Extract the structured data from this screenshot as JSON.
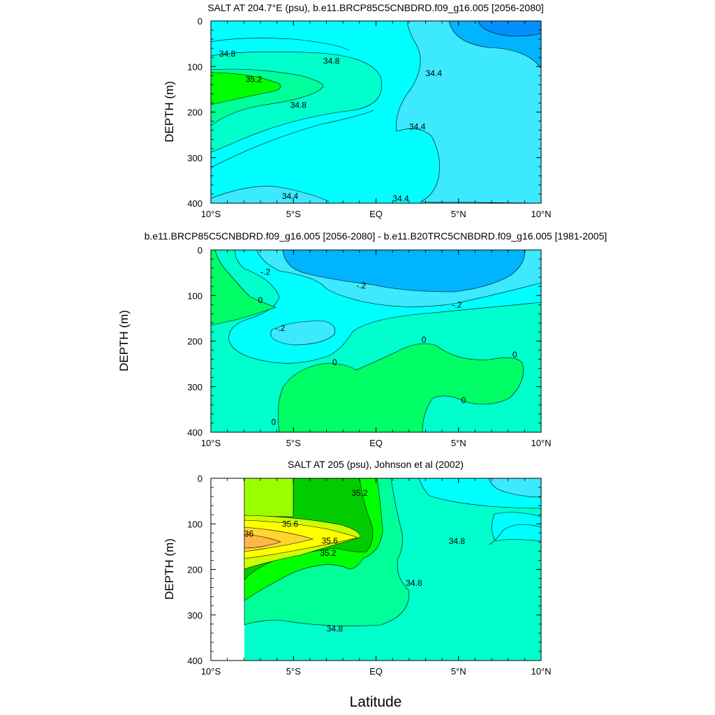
{
  "x_axis_label": "Latitude",
  "chart_data": [
    {
      "type": "heatmap",
      "title": "SALT AT 204.7°E (psu), b.e11.BRCP85C5CNBDRD.f09_g16.005 [2056-2080]",
      "xlabel": "",
      "ylabel": "DEPTH (m)",
      "xlim": [
        -10,
        10
      ],
      "ylim": [
        400,
        0
      ],
      "x_ticks": [
        "10°S",
        "5°S",
        "EQ",
        "5°N",
        "10°N"
      ],
      "y_ticks": [
        "0",
        "100",
        "200",
        "300",
        "400"
      ],
      "contour_levels": [
        34.0,
        34.2,
        34.4,
        34.6,
        34.8,
        35.0,
        35.2
      ],
      "contour_labels": [
        {
          "text": "34.8",
          "x": -9.0,
          "y": 72
        },
        {
          "text": "34.8",
          "x": -2.7,
          "y": 88
        },
        {
          "text": "35.2",
          "x": -7.4,
          "y": 128
        },
        {
          "text": "34.8",
          "x": -4.7,
          "y": 185
        },
        {
          "text": "34.4",
          "x": 3.5,
          "y": 115
        },
        {
          "text": "34.4",
          "x": 2.5,
          "y": 232
        },
        {
          "text": "34.4",
          "x": -5.2,
          "y": 385
        },
        {
          "text": "34.4",
          "x": 1.5,
          "y": 390
        }
      ],
      "regions": [
        {
          "label": "34.2-34.4",
          "color": "#3ce9ff",
          "x": [
            2.0,
            10.0
          ],
          "depth": [
            0,
            400
          ]
        },
        {
          "label": "34.4-34.6",
          "color": "#00ffff",
          "x": [
            -10.0,
            2.0
          ],
          "depth": [
            0,
            400
          ]
        },
        {
          "label": "34.6-34.8",
          "color": "#00ffcc",
          "x": [
            -10.0,
            0.5
          ],
          "depth": [
            40,
            290
          ]
        },
        {
          "label": "34.8-35.0",
          "color": "#00ff99",
          "x": [
            -10.0,
            -3.0
          ],
          "depth": [
            100,
            200
          ]
        },
        {
          "label": "35.0-35.2",
          "color": "#00ff00",
          "x": [
            -10.0,
            -5.0
          ],
          "depth": [
            110,
            185
          ]
        },
        {
          "label": "34.0-34.2",
          "color": "#00b4ff",
          "x": [
            6.0,
            10.0
          ],
          "depth": [
            0,
            60
          ]
        },
        {
          "label": "< 34.0",
          "color": "#0090ff",
          "x": [
            8.0,
            10.0
          ],
          "depth": [
            0,
            35
          ]
        }
      ]
    },
    {
      "type": "heatmap",
      "title": "b.e11.BRCP85C5CNBDRD.f09_g16.005 [2056-2080] - b.e11.B20TRC5CNBDRD.f09_g16.005 [1981-2005]",
      "xlabel": "",
      "ylabel": "DEPTH (m)",
      "xlim": [
        -10,
        10
      ],
      "ylim": [
        400,
        0
      ],
      "x_ticks": [
        "10°S",
        "5°S",
        "EQ",
        "5°N",
        "10°N"
      ],
      "y_ticks": [
        "0",
        "100",
        "200",
        "300",
        "400"
      ],
      "contour_levels": [
        -0.6,
        -0.4,
        -0.2,
        0.0
      ],
      "contour_labels": [
        {
          "text": "-.2",
          "x": -6.7,
          "y": 48
        },
        {
          "text": "-.2",
          "x": -0.9,
          "y": 78
        },
        {
          "text": "-.2",
          "x": 4.9,
          "y": 120
        },
        {
          "text": "0",
          "x": -7.0,
          "y": 110
        },
        {
          "text": "-.2",
          "x": -5.8,
          "y": 172
        },
        {
          "text": "0",
          "x": -2.5,
          "y": 247
        },
        {
          "text": "0",
          "x": 2.9,
          "y": 197
        },
        {
          "text": "0",
          "x": 8.4,
          "y": 230
        },
        {
          "text": "0",
          "x": 5.3,
          "y": 330
        },
        {
          "text": "0",
          "x": -6.2,
          "y": 378
        }
      ],
      "regions": [
        {
          "label": "-0.2-0",
          "color": "#00ffcc",
          "x": [
            -10.0,
            10.0
          ],
          "depth": [
            0,
            400
          ]
        },
        {
          "label": "-0.4 to -0.2",
          "color": "#00ffff",
          "x": [
            -8.0,
            10.0
          ],
          "depth": [
            0,
            240
          ]
        },
        {
          "label": "-0.6 to -0.4",
          "color": "#3ce9ff",
          "x": [
            -7.5,
            10.0
          ],
          "depth": [
            0,
            140
          ]
        },
        {
          "label": "< -0.6",
          "color": "#00b4ff",
          "x": [
            -5.5,
            7.5
          ],
          "depth": [
            0,
            90
          ]
        },
        {
          "label": "> 0",
          "color": "#00ff66",
          "x": [
            -10.0,
            -4.8
          ],
          "depth": [
            0,
            165
          ]
        },
        {
          "label": "> 0 (deep)",
          "color": "#00ff66",
          "x": [
            -6.0,
            8.8
          ],
          "depth": [
            190,
            400
          ]
        }
      ]
    },
    {
      "type": "heatmap",
      "title": "SALT AT 205 (psu), Johnson et al (2002)",
      "xlabel": "Latitude",
      "ylabel": "DEPTH (m)",
      "xlim": [
        -10,
        10
      ],
      "ylim": [
        400,
        0
      ],
      "x_ticks": [
        "10°S",
        "5°S",
        "EQ",
        "5°N",
        "10°N"
      ],
      "y_ticks": [
        "0",
        "100",
        "200",
        "300",
        "400"
      ],
      "contour_levels": [
        34.6,
        34.8,
        35.0,
        35.2,
        35.4,
        35.6,
        35.8,
        36.0
      ],
      "contour_labels": [
        {
          "text": "35.2",
          "x": -1.0,
          "y": 32
        },
        {
          "text": "35.6",
          "x": -5.2,
          "y": 100
        },
        {
          "text": "36",
          "x": -7.7,
          "y": 122
        },
        {
          "text": "35.6",
          "x": -2.8,
          "y": 137
        },
        {
          "text": "35.2",
          "x": -2.9,
          "y": 164
        },
        {
          "text": "34.8",
          "x": 4.9,
          "y": 138
        },
        {
          "text": "34.8",
          "x": 2.3,
          "y": 230
        },
        {
          "text": "34.8",
          "x": -2.5,
          "y": 330
        }
      ],
      "no_data_region": {
        "x": [
          -10.0,
          -8.0
        ],
        "depth": [
          0,
          400
        ]
      },
      "regions": [
        {
          "label": "34.6-34.8",
          "color": "#00ffcc",
          "x": [
            -8.0,
            10.0
          ],
          "depth": [
            0,
            400
          ]
        },
        {
          "label": "34.4-34.6",
          "color": "#00ffff",
          "x": [
            2.5,
            10.0
          ],
          "depth": [
            0,
            90
          ]
        },
        {
          "label": "34.2-34.4",
          "color": "#3ce9ff",
          "x": [
            7.5,
            10.0
          ],
          "depth": [
            0,
            35
          ]
        },
        {
          "label": "34.8-35.0",
          "color": "#00ff99",
          "x": [
            -8.0,
            0.0
          ],
          "depth": [
            0,
            320
          ]
        },
        {
          "label": "35.0-35.2",
          "color": "#00ff00",
          "x": [
            -8.0,
            0.5
          ],
          "depth": [
            0,
            250
          ]
        },
        {
          "label": "35.2-35.4",
          "color": "#00cc00",
          "x": [
            -5.2,
            -0.8
          ],
          "depth": [
            0,
            85
          ]
        },
        {
          "label": "35.2-35.4",
          "color": "#00cc00",
          "x": [
            -8.0,
            -1.5
          ],
          "depth": [
            80,
            220
          ]
        },
        {
          "label": "35.4-35.6",
          "color": "#99ff00",
          "x": [
            -8.0,
            -5.2
          ],
          "depth": [
            0,
            85
          ]
        },
        {
          "label": "35.4-35.6",
          "color": "#ccff00",
          "x": [
            -8.0,
            -2.0
          ],
          "depth": [
            85,
            190
          ]
        },
        {
          "label": "35.6-35.8",
          "color": "#ffff00",
          "x": [
            -8.0,
            -1.0
          ],
          "depth": [
            90,
            175
          ]
        },
        {
          "label": "35.8-36.0",
          "color": "#ffd530",
          "x": [
            -8.0,
            -4.0
          ],
          "depth": [
            105,
            165
          ]
        },
        {
          "label": "> 36.0",
          "color": "#ffb845",
          "x": [
            -8.0,
            -6.0
          ],
          "depth": [
            125,
            160
          ]
        }
      ]
    }
  ]
}
